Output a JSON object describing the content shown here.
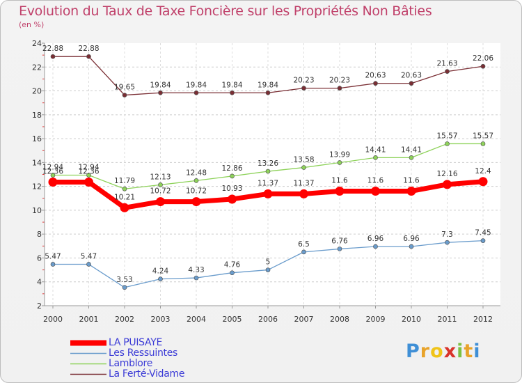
{
  "title": "Evolution du Taux de Taxe Foncière sur les Propriétés Non Bâties",
  "subtitle": "(en %)",
  "logo": {
    "text": "Proxiti",
    "letter_colors": [
      "#3f8fd6",
      "#e8a32a",
      "#f0c419",
      "#d9342b",
      "#7cc142",
      "#e8a32a",
      "#3f8fd6"
    ]
  },
  "chart_data": {
    "type": "line",
    "title": "Evolution du Taux de Taxe Foncière sur les Propriétés Non Bâties",
    "ylabel": "(en %)",
    "xlabel": "",
    "ylim": [
      2,
      24
    ],
    "yticks": [
      "2",
      "4",
      "6",
      "8",
      "10",
      "12",
      "14",
      "16",
      "18",
      "20",
      "22",
      "24"
    ],
    "categories": [
      "2000",
      "2001",
      "2002",
      "2003",
      "2004",
      "2005",
      "2006",
      "2007",
      "2008",
      "2009",
      "2010",
      "2011",
      "2012"
    ],
    "series": [
      {
        "name": "La Ferté-Vidame",
        "color": "#7a2e34",
        "values": [
          22.88,
          22.88,
          19.65,
          19.84,
          19.84,
          19.84,
          19.84,
          20.23,
          20.23,
          20.63,
          20.63,
          21.63,
          22.06
        ],
        "labels": [
          "22.88",
          "22.88",
          "19.65",
          "19.84",
          "19.84",
          "19.84",
          "19.84",
          "20.23",
          "20.23",
          "20.63",
          "20.63",
          "21.63",
          "22.06"
        ]
      },
      {
        "name": "Lamblore",
        "color": "#8ed25a",
        "values": [
          12.94,
          12.94,
          11.79,
          12.13,
          12.48,
          12.86,
          13.26,
          13.58,
          13.99,
          14.41,
          14.41,
          15.57,
          15.57
        ],
        "labels": [
          "12.94",
          "12.94",
          "11.79",
          "12.13",
          "12.48",
          "12.86",
          "13.26",
          "13.58",
          "13.99",
          "14.41",
          "14.41",
          "15.57",
          "15.57"
        ]
      },
      {
        "name": "LA PUISAYE",
        "color": "#ff0000",
        "values": [
          12.36,
          12.36,
          10.21,
          10.72,
          10.72,
          10.93,
          11.37,
          11.37,
          11.6,
          11.6,
          11.6,
          12.16,
          12.4
        ],
        "labels": [
          "12.36",
          "12.36",
          "10.21",
          "10.72",
          "10.72",
          "10.93",
          "11.37",
          "11.37",
          "11.6",
          "11.6",
          "11.6",
          "12.16",
          "12.4"
        ]
      },
      {
        "name": "Les Ressuintes",
        "color": "#6a9ccc",
        "values": [
          5.47,
          5.47,
          3.53,
          4.24,
          4.33,
          4.76,
          5,
          6.5,
          6.76,
          6.96,
          6.96,
          7.3,
          7.45
        ],
        "labels": [
          "5.47",
          "5.47",
          "3.53",
          "4.24",
          "4.33",
          "4.76",
          "5",
          "6.5",
          "6.76",
          "6.96",
          "6.96",
          "7.3",
          "7.45"
        ]
      }
    ],
    "legend": {
      "placement": "bottom-left",
      "items": [
        "LA PUISAYE",
        "Les Ressuintes",
        "Lamblore",
        "La Ferté-Vidame"
      ]
    }
  }
}
